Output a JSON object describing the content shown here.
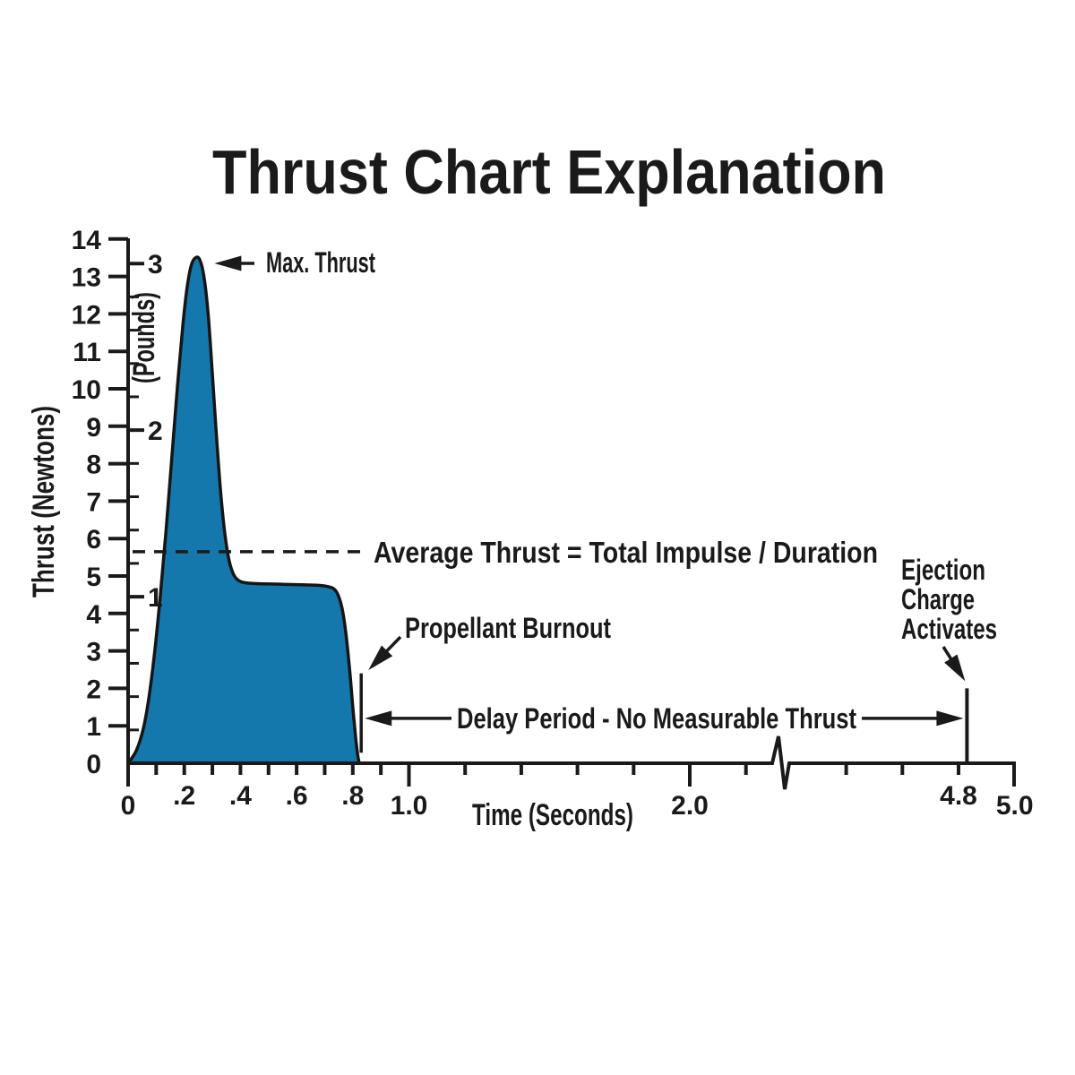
{
  "page": {
    "title": "Thrust Chart Explanation",
    "background": "#ffffff"
  },
  "chart_data": {
    "type": "area",
    "title": "Thrust Chart Explanation",
    "xlabel": "Time (Seconds)",
    "ylabel": "Thrust (Newtons)",
    "ylabel_secondary": "(Pounds)",
    "grid": false,
    "colors": {
      "curve_fill": "#1478ad",
      "curve_stroke": "#151515",
      "axis": "#1a1a1a",
      "text": "#1a1a1a"
    },
    "y_axis_newtons": {
      "min": 0,
      "max": 14,
      "tick_step": 1,
      "tick_labels": [
        "0",
        "1",
        "2",
        "3",
        "4",
        "5",
        "6",
        "7",
        "8",
        "9",
        "10",
        "11",
        "12",
        "13",
        "14"
      ]
    },
    "y_axis_pounds": {
      "newtons_per_pound": 4.448,
      "minor_step_lb": 0.2,
      "major_ticks": [
        {
          "lb": 1,
          "label": "1"
        },
        {
          "lb": 2,
          "label": "2"
        },
        {
          "lb": 3,
          "label": "3"
        }
      ]
    },
    "x_axis": {
      "unit": "seconds",
      "range": [
        0,
        5.0
      ],
      "break_between": [
        2.3,
        4.2
      ],
      "ticks": [
        {
          "t": 0.0,
          "label": "0",
          "major": true
        },
        {
          "t": 0.1
        },
        {
          "t": 0.2,
          "label": ".2"
        },
        {
          "t": 0.3
        },
        {
          "t": 0.4,
          "label": ".4"
        },
        {
          "t": 0.5
        },
        {
          "t": 0.6,
          "label": ".6"
        },
        {
          "t": 0.7
        },
        {
          "t": 0.8,
          "label": ".8"
        },
        {
          "t": 0.9
        },
        {
          "t": 1.0,
          "label": "1.0",
          "major": true
        },
        {
          "t": 1.2
        },
        {
          "t": 1.4
        },
        {
          "t": 1.6
        },
        {
          "t": 1.8
        },
        {
          "t": 2.0,
          "label": "2.0",
          "major": true
        },
        {
          "t": 2.2
        },
        {
          "t": 4.4
        },
        {
          "t": 4.6
        },
        {
          "t": 4.8,
          "label": "4.8"
        },
        {
          "t": 5.0,
          "label": "5.0",
          "major": true,
          "no_tick": true
        }
      ]
    },
    "curve_points_t_N": [
      [
        0.0,
        0.0
      ],
      [
        0.03,
        0.35
      ],
      [
        0.055,
        0.95
      ],
      [
        0.075,
        1.8
      ],
      [
        0.095,
        3.0
      ],
      [
        0.115,
        4.5
      ],
      [
        0.135,
        6.2
      ],
      [
        0.155,
        8.1
      ],
      [
        0.175,
        10.0
      ],
      [
        0.195,
        11.7
      ],
      [
        0.21,
        12.7
      ],
      [
        0.225,
        13.3
      ],
      [
        0.24,
        13.5
      ],
      [
        0.255,
        13.45
      ],
      [
        0.27,
        13.0
      ],
      [
        0.285,
        12.0
      ],
      [
        0.3,
        10.4
      ],
      [
        0.315,
        8.7
      ],
      [
        0.33,
        7.2
      ],
      [
        0.345,
        6.1
      ],
      [
        0.36,
        5.4
      ],
      [
        0.375,
        5.05
      ],
      [
        0.39,
        4.9
      ],
      [
        0.41,
        4.83
      ],
      [
        0.45,
        4.8
      ],
      [
        0.55,
        4.78
      ],
      [
        0.65,
        4.76
      ],
      [
        0.71,
        4.72
      ],
      [
        0.74,
        4.6
      ],
      [
        0.76,
        4.2
      ],
      [
        0.775,
        3.5
      ],
      [
        0.79,
        2.4
      ],
      [
        0.8,
        1.5
      ],
      [
        0.81,
        0.7
      ],
      [
        0.818,
        0.2
      ],
      [
        0.823,
        0.0
      ]
    ],
    "max_thrust": {
      "t": 0.25,
      "N": 13.5
    },
    "average_thrust_N": 5.65,
    "burnout_marker": {
      "t": 0.83,
      "from_N": 0.28,
      "to_N": 2.4
    },
    "delay_arrow_N": 1.2,
    "ejection_spike": {
      "t": 4.83,
      "top_N": 2.0
    }
  },
  "annotations": {
    "max_thrust": "Max. Thrust",
    "average_thrust": "Average Thrust = Total Impulse / Duration",
    "propellant_burnout": "Propellant Burnout",
    "delay_period": "Delay Period - No Measurable Thrust",
    "ejection_charge_lines": [
      "Ejection",
      "Charge",
      "Activates"
    ]
  }
}
